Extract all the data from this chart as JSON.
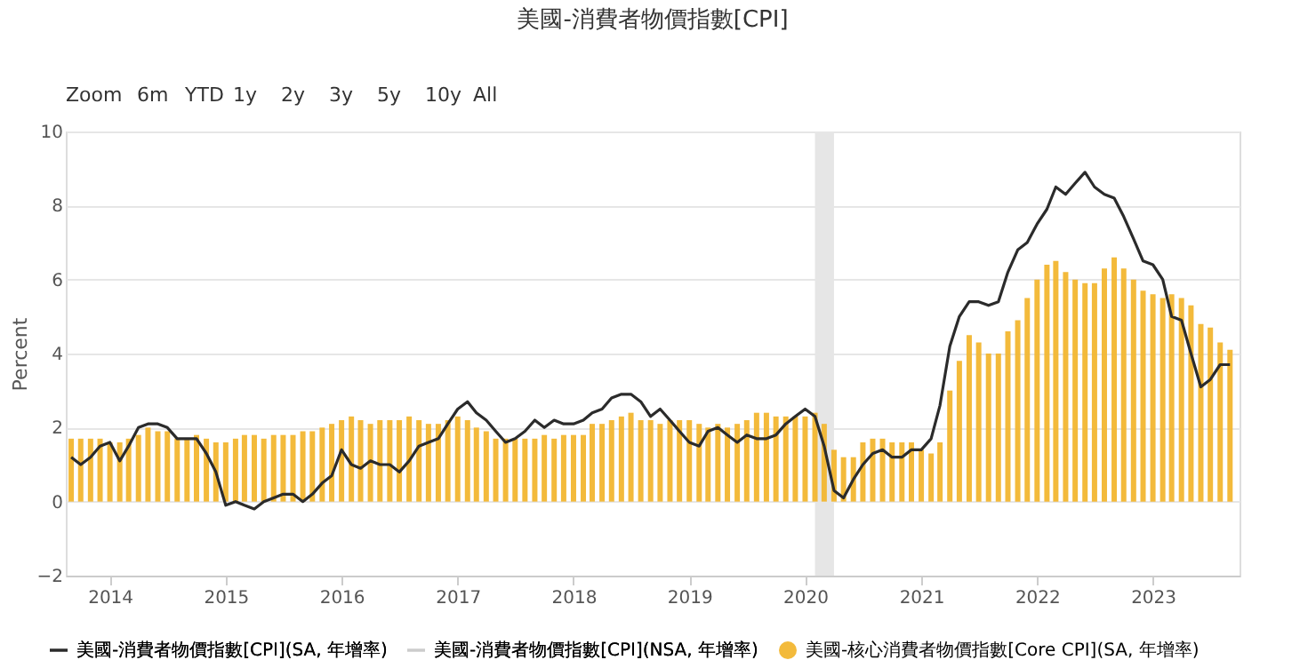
{
  "chart_data": {
    "type": "line",
    "title": "美國-消費者物價指數[CPI]",
    "ylabel": "Percent",
    "annotations": [
      "Zoom",
      "6m",
      "YTD",
      "1y",
      "2y",
      "3y",
      "5y",
      "10y",
      "All"
    ],
    "x": [
      "2013-09",
      "2013-10",
      "2013-11",
      "2013-12",
      "2014-01",
      "2014-02",
      "2014-03",
      "2014-04",
      "2014-05",
      "2014-06",
      "2014-07",
      "2014-08",
      "2014-09",
      "2014-10",
      "2014-11",
      "2014-12",
      "2015-01",
      "2015-02",
      "2015-03",
      "2015-04",
      "2015-05",
      "2015-06",
      "2015-07",
      "2015-08",
      "2015-09",
      "2015-10",
      "2015-11",
      "2015-12",
      "2016-01",
      "2016-02",
      "2016-03",
      "2016-04",
      "2016-05",
      "2016-06",
      "2016-07",
      "2016-08",
      "2016-09",
      "2016-10",
      "2016-11",
      "2016-12",
      "2017-01",
      "2017-02",
      "2017-03",
      "2017-04",
      "2017-05",
      "2017-06",
      "2017-07",
      "2017-08",
      "2017-09",
      "2017-10",
      "2017-11",
      "2017-12",
      "2018-01",
      "2018-02",
      "2018-03",
      "2018-04",
      "2018-05",
      "2018-06",
      "2018-07",
      "2018-08",
      "2018-09",
      "2018-10",
      "2018-11",
      "2018-12",
      "2019-01",
      "2019-02",
      "2019-03",
      "2019-04",
      "2019-05",
      "2019-06",
      "2019-07",
      "2019-08",
      "2019-09",
      "2019-10",
      "2019-11",
      "2019-12",
      "2020-01",
      "2020-02",
      "2020-03",
      "2020-04",
      "2020-05",
      "2020-06",
      "2020-07",
      "2020-08",
      "2020-09",
      "2020-10",
      "2020-11",
      "2020-12",
      "2021-01",
      "2021-02",
      "2021-03",
      "2021-04",
      "2021-05",
      "2021-06",
      "2021-07",
      "2021-08",
      "2021-09",
      "2021-10",
      "2021-11",
      "2021-12",
      "2022-01",
      "2022-02",
      "2022-03",
      "2022-04",
      "2022-05",
      "2022-06",
      "2022-07",
      "2022-08",
      "2022-09",
      "2022-10",
      "2022-11",
      "2022-12",
      "2023-01",
      "2023-02",
      "2023-03",
      "2023-04",
      "2023-05",
      "2023-06",
      "2023-07",
      "2023-08",
      "2023-09"
    ],
    "series": [
      {
        "name": "美國-核心消費者物價指數[Core CPI](SA, 年增率)",
        "type": "bar",
        "color": "#f2b630",
        "values": [
          1.7,
          1.7,
          1.7,
          1.7,
          1.6,
          1.6,
          1.7,
          1.8,
          2.0,
          1.9,
          1.9,
          1.7,
          1.7,
          1.8,
          1.7,
          1.6,
          1.6,
          1.7,
          1.8,
          1.8,
          1.7,
          1.8,
          1.8,
          1.8,
          1.9,
          1.9,
          2.0,
          2.1,
          2.2,
          2.3,
          2.2,
          2.1,
          2.2,
          2.2,
          2.2,
          2.3,
          2.2,
          2.1,
          2.1,
          2.2,
          2.3,
          2.2,
          2.0,
          1.9,
          1.7,
          1.7,
          1.7,
          1.7,
          1.7,
          1.8,
          1.7,
          1.8,
          1.8,
          1.8,
          2.1,
          2.1,
          2.2,
          2.3,
          2.4,
          2.2,
          2.2,
          2.1,
          2.2,
          2.2,
          2.2,
          2.1,
          2.0,
          2.1,
          2.0,
          2.1,
          2.2,
          2.4,
          2.4,
          2.3,
          2.3,
          2.3,
          2.3,
          2.4,
          2.1,
          1.4,
          1.2,
          1.2,
          1.6,
          1.7,
          1.7,
          1.6,
          1.6,
          1.6,
          1.4,
          1.3,
          1.6,
          3.0,
          3.8,
          4.5,
          4.3,
          4.0,
          4.0,
          4.6,
          4.9,
          5.5,
          6.0,
          6.4,
          6.5,
          6.2,
          6.0,
          5.9,
          5.9,
          6.3,
          6.6,
          6.3,
          6.0,
          5.7,
          5.6,
          5.5,
          5.6,
          5.5,
          5.3,
          4.8,
          4.7,
          4.3,
          4.1
        ]
      },
      {
        "name": "美國-消費者物價指數[CPI](SA, 年增率)",
        "color": "#2b2b2b",
        "values": [
          1.2,
          1.0,
          1.2,
          1.5,
          1.6,
          1.1,
          1.5,
          2.0,
          2.1,
          2.1,
          2.0,
          1.7,
          1.7,
          1.7,
          1.3,
          0.8,
          -0.1,
          0.0,
          -0.1,
          -0.2,
          0.0,
          0.1,
          0.2,
          0.2,
          0.0,
          0.2,
          0.5,
          0.7,
          1.4,
          1.0,
          0.9,
          1.1,
          1.0,
          1.0,
          0.8,
          1.1,
          1.5,
          1.6,
          1.7,
          2.1,
          2.5,
          2.7,
          2.4,
          2.2,
          1.9,
          1.6,
          1.7,
          1.9,
          2.2,
          2.0,
          2.2,
          2.1,
          2.1,
          2.2,
          2.4,
          2.5,
          2.8,
          2.9,
          2.9,
          2.7,
          2.3,
          2.5,
          2.2,
          1.9,
          1.6,
          1.5,
          1.9,
          2.0,
          1.8,
          1.6,
          1.8,
          1.7,
          1.7,
          1.8,
          2.1,
          2.3,
          2.5,
          2.3,
          1.5,
          0.3,
          0.1,
          0.6,
          1.0,
          1.3,
          1.4,
          1.2,
          1.2,
          1.4,
          1.4,
          1.7,
          2.6,
          4.2,
          5.0,
          5.4,
          5.4,
          5.3,
          5.4,
          6.2,
          6.8,
          7.0,
          7.5,
          7.9,
          8.5,
          8.3,
          8.6,
          8.9,
          8.5,
          8.3,
          8.2,
          7.7,
          7.1,
          6.5,
          6.4,
          6.0,
          5.0,
          4.9,
          4.0,
          3.1,
          3.3,
          3.7,
          3.7
        ]
      },
      {
        "name": "美國-消費者物價指數[CPI](NSA, 年增率)",
        "color": "#cccccc",
        "values": [
          null,
          null,
          null,
          null,
          null,
          null,
          null,
          null,
          null,
          null,
          null,
          null,
          null,
          null,
          null,
          null,
          null,
          null,
          null,
          null,
          null,
          null,
          null,
          null,
          null,
          null,
          null,
          null,
          null,
          null,
          null,
          null,
          null,
          null,
          null,
          null,
          null,
          null,
          null,
          null,
          null,
          null,
          null,
          null,
          null,
          null,
          null,
          null,
          null,
          null,
          null,
          null,
          null,
          null,
          null,
          null,
          null,
          null,
          null,
          null,
          null,
          null,
          null,
          null,
          null,
          null,
          null,
          null,
          null,
          null,
          null,
          null,
          null,
          null,
          null,
          null,
          null,
          null,
          null,
          null,
          null,
          null,
          null,
          null,
          null,
          null,
          null,
          null,
          null,
          null,
          null,
          null,
          null,
          null,
          null,
          null,
          null,
          null,
          null,
          null,
          null,
          null,
          null,
          null,
          null,
          null,
          null,
          null,
          null,
          null,
          null,
          null,
          null,
          null,
          null,
          null,
          null,
          null,
          null,
          null,
          null
        ]
      }
    ],
    "bands": [
      {
        "axis": "x",
        "from": "2020-02",
        "to": "2020-04",
        "color": "#e6e6e6"
      }
    ],
    "xlim": [
      "2013-08-15",
      "2023-10-01"
    ],
    "xticks": [
      {
        "value": "2014",
        "label": "2014"
      },
      {
        "value": "2015",
        "label": "2015"
      },
      {
        "value": "2016",
        "label": "2016"
      },
      {
        "value": "2017",
        "label": "2017"
      },
      {
        "value": "2018",
        "label": "2018"
      },
      {
        "value": "2019",
        "label": "2019"
      },
      {
        "value": "2020",
        "label": "2020"
      },
      {
        "value": "2021",
        "label": "2021"
      },
      {
        "value": "2022",
        "label": "2022"
      },
      {
        "value": "2023",
        "label": "2023"
      }
    ],
    "ylim": [
      -2,
      10
    ],
    "yticks": [
      -2,
      0,
      2,
      4,
      6,
      8,
      10
    ],
    "grid": "y",
    "legend": "bottom"
  }
}
